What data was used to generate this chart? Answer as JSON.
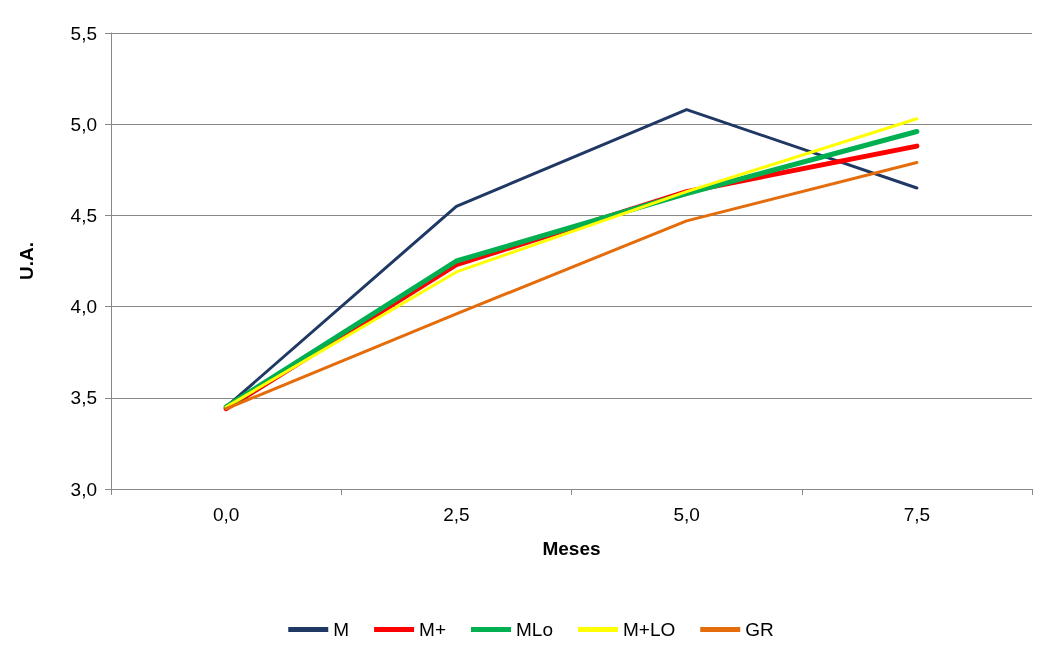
{
  "chart_data": {
    "type": "line",
    "xlabel": "Meses",
    "ylabel": "U.A.",
    "categories": [
      "0,0",
      "2,5",
      "5,0",
      "7,5"
    ],
    "series": [
      {
        "name": "M",
        "color": "#1f3864",
        "values": [
          3.45,
          4.55,
          5.08,
          4.65
        ]
      },
      {
        "name": "M+",
        "color": "#ff0000",
        "values": [
          3.44,
          4.23,
          4.63,
          4.88
        ]
      },
      {
        "name": "MLo",
        "color": "#00b050",
        "values": [
          3.45,
          4.25,
          4.62,
          4.96
        ]
      },
      {
        "name": "M+LO",
        "color": "#ffff00",
        "values": [
          3.45,
          4.19,
          4.63,
          5.03
        ]
      },
      {
        "name": "GR",
        "color": "#e46c0a",
        "values": [
          3.44,
          3.96,
          4.47,
          4.79
        ]
      }
    ],
    "ylim": [
      3,
      5.5
    ],
    "yticks": [
      {
        "value": 3,
        "label": "3,0"
      },
      {
        "value": 3.5,
        "label": "3,5"
      },
      {
        "value": 4,
        "label": "4,0"
      },
      {
        "value": 4.5,
        "label": "4,5"
      },
      {
        "value": 5,
        "label": "5,0"
      },
      {
        "value": 5.5,
        "label": "5,5"
      }
    ],
    "grid": "y",
    "legend": "bottom",
    "marker": "none",
    "line_style": "solid"
  }
}
